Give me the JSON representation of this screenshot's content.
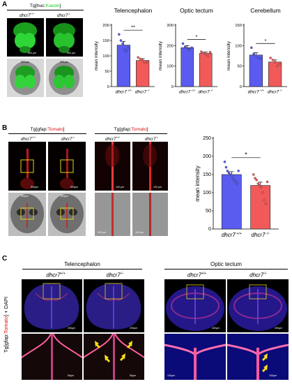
{
  "panelA": {
    "letter": "A",
    "header_prefix": "Tg[huc:",
    "header_marker": "Kaede",
    "header_suffix": "]",
    "col1": "dhcr7",
    "col1_sup": "+/+",
    "col2": "dhcr7",
    "col2_sup": "-/-",
    "scale_bar": "500 μm"
  },
  "panelB": {
    "letter": "B",
    "header_prefix": "Tg[gfap:",
    "header_marker": "Tomato",
    "header_suffix": "]",
    "col1": "dhcr7",
    "col1_sup": "+/+",
    "col2": "dhcr7",
    "col2_sup": "-/-",
    "scale_bar_low": "500μm",
    "scale_bar_high": "100 μm"
  },
  "panelC": {
    "letter": "C",
    "section_left": "Telencephalon",
    "section_right": "Optic tectum",
    "col1": "dhcr7",
    "col1_sup": "+/+",
    "col2": "dhcr7",
    "col2_sup": "-/-",
    "side_prefix": "Tg[gfap:",
    "side_marker": "Tomato",
    "side_suffix": "] + DAPI",
    "scale_tel_top": "200μm",
    "scale_tel_bot": "50μm",
    "scale_opt_top": "400μm",
    "scale_opt_bot": "100μm"
  },
  "colors": {
    "control": "#5a5cf0",
    "mutant": "#f25a5a",
    "kaede": "#1fd12a",
    "tomato": "#e01010",
    "dapi": "#1b2cff"
  },
  "chart_data": [
    {
      "type": "bar",
      "title": "Telencephalon",
      "categories": [
        "dhcr7 +/+",
        "dhcr7 -/-"
      ],
      "values": [
        135,
        85
      ],
      "errors": [
        12,
        6
      ],
      "ylabel": "mean intensity",
      "ylim": [
        0,
        200
      ],
      "yticks": [
        0,
        50,
        100,
        150,
        200
      ],
      "significance": "**",
      "points": [
        [
          170,
          150,
          140,
          120,
          115,
          125
        ],
        [
          95,
          90,
          85,
          78,
          80
        ]
      ]
    },
    {
      "type": "bar",
      "title": "Optic tectum",
      "categories": [
        "dhcr7 +/+",
        "dhcr7 -/-"
      ],
      "values": [
        190,
        162
      ],
      "errors": [
        10,
        7
      ],
      "ylabel": "mean intensity",
      "ylim": [
        0,
        300
      ],
      "yticks": [
        0,
        100,
        200,
        300
      ],
      "significance": "*",
      "points": [
        [
          210,
          195,
          185,
          180,
          190
        ],
        [
          170,
          165,
          158,
          150,
          168
        ]
      ]
    },
    {
      "type": "bar",
      "title": "Cerebellum",
      "categories": [
        "dhcr7 +/+",
        "dhcr7 -/-"
      ],
      "values": [
        77,
        60
      ],
      "errors": [
        6,
        5
      ],
      "ylabel": "mean intensity",
      "ylim": [
        0,
        150
      ],
      "yticks": [
        0,
        50,
        100,
        150
      ],
      "significance": "*",
      "points": [
        [
          95,
          80,
          75,
          70,
          68
        ],
        [
          70,
          65,
          60,
          50,
          55
        ]
      ]
    },
    {
      "type": "bar",
      "title": "",
      "categories": [
        "dhcr7 +/+",
        "dhcr7 -/-"
      ],
      "values": [
        150,
        120
      ],
      "errors": [
        8,
        9
      ],
      "ylabel": "mean intensity",
      "ylim": [
        0,
        250
      ],
      "yticks": [
        0,
        50,
        100,
        150,
        200,
        250
      ],
      "significance": "*",
      "points": [
        [
          185,
          170,
          160,
          155,
          150,
          148,
          140,
          135,
          130,
          125,
          160
        ],
        [
          150,
          140,
          135,
          125,
          120,
          115,
          100,
          80,
          70,
          130
        ]
      ]
    }
  ]
}
